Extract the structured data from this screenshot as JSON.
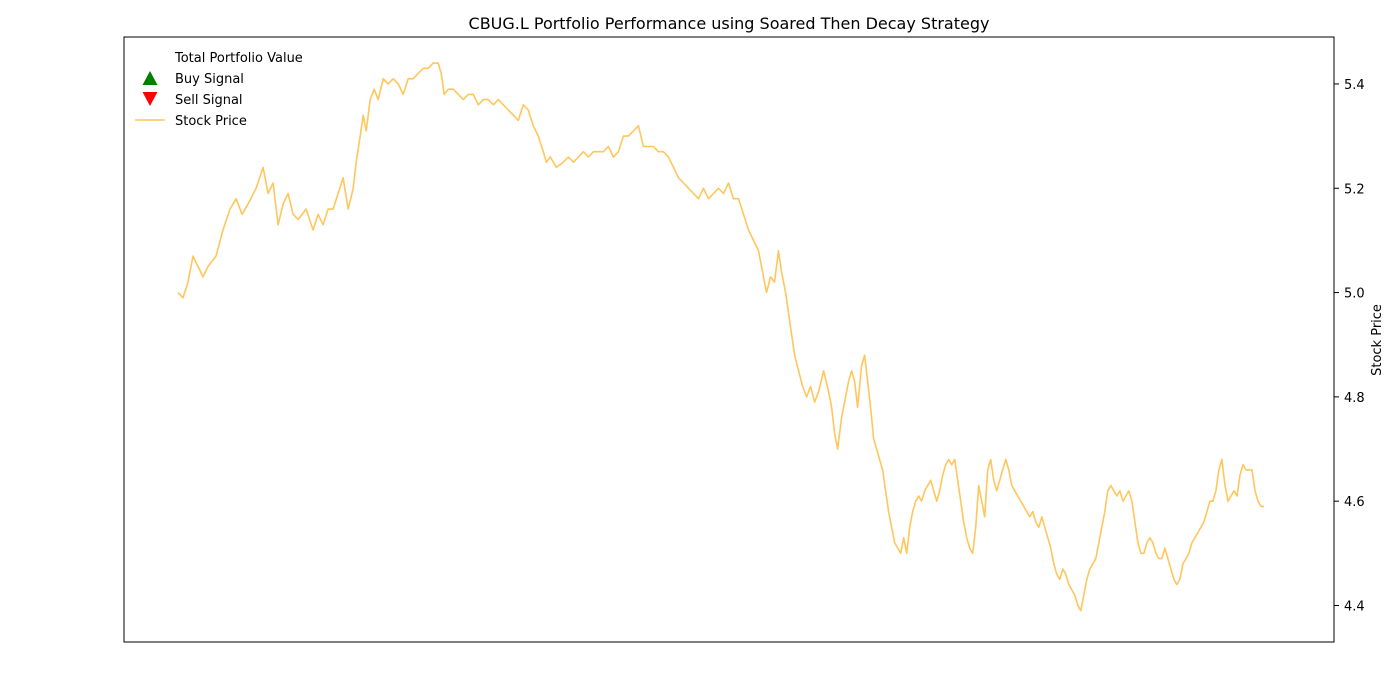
{
  "chart_data": {
    "type": "line",
    "title": "CBUG.L Portfolio Performance using Soared Then Decay Strategy",
    "xlabel": "",
    "ylabel": "Stock Price",
    "y_axis_side": "right",
    "ylim": [
      4.33,
      5.49
    ],
    "y_ticks": [
      "4.4",
      "4.6",
      "4.8",
      "5.0",
      "5.2",
      "5.4"
    ],
    "x_ticks_visible": false,
    "grid": false,
    "legend_position": "top-left",
    "legend": [
      {
        "label": "Total Portfolio Value",
        "marker": "none",
        "color": ""
      },
      {
        "label": "Buy Signal",
        "marker": "triangle-up",
        "color": "#008000"
      },
      {
        "label": "Sell Signal",
        "marker": "triangle-down",
        "color": "#ff0000"
      },
      {
        "label": "Stock Price",
        "marker": "line",
        "color": "#ffc65c"
      }
    ],
    "series": [
      {
        "name": "Stock Price",
        "color": "#ffc65c",
        "x_note": "trading-day index (no x tick labels shown)",
        "x_range": [
          0,
          1100
        ],
        "points": [
          [
            0,
            5.0
          ],
          [
            5,
            4.99
          ],
          [
            10,
            5.02
          ],
          [
            15,
            5.07
          ],
          [
            20,
            5.05
          ],
          [
            25,
            5.03
          ],
          [
            30,
            5.05
          ],
          [
            38,
            5.07
          ],
          [
            45,
            5.12
          ],
          [
            52,
            5.16
          ],
          [
            58,
            5.18
          ],
          [
            64,
            5.15
          ],
          [
            70,
            5.17
          ],
          [
            78,
            5.2
          ],
          [
            85,
            5.24
          ],
          [
            90,
            5.19
          ],
          [
            95,
            5.21
          ],
          [
            100,
            5.13
          ],
          [
            105,
            5.17
          ],
          [
            110,
            5.19
          ],
          [
            115,
            5.15
          ],
          [
            120,
            5.14
          ],
          [
            128,
            5.16
          ],
          [
            135,
            5.12
          ],
          [
            140,
            5.15
          ],
          [
            145,
            5.13
          ],
          [
            150,
            5.16
          ],
          [
            155,
            5.16
          ],
          [
            160,
            5.19
          ],
          [
            165,
            5.22
          ],
          [
            170,
            5.16
          ],
          [
            175,
            5.2
          ],
          [
            178,
            5.25
          ],
          [
            182,
            5.3
          ],
          [
            185,
            5.34
          ],
          [
            188,
            5.31
          ],
          [
            192,
            5.37
          ],
          [
            196,
            5.39
          ],
          [
            200,
            5.37
          ],
          [
            205,
            5.41
          ],
          [
            210,
            5.4
          ],
          [
            215,
            5.41
          ],
          [
            220,
            5.4
          ],
          [
            225,
            5.38
          ],
          [
            230,
            5.41
          ],
          [
            235,
            5.41
          ],
          [
            240,
            5.42
          ],
          [
            245,
            5.43
          ],
          [
            250,
            5.43
          ],
          [
            255,
            5.44
          ],
          [
            260,
            5.44
          ],
          [
            263,
            5.42
          ],
          [
            266,
            5.38
          ],
          [
            270,
            5.39
          ],
          [
            275,
            5.39
          ],
          [
            280,
            5.38
          ],
          [
            285,
            5.37
          ],
          [
            290,
            5.38
          ],
          [
            295,
            5.38
          ],
          [
            300,
            5.36
          ],
          [
            305,
            5.37
          ],
          [
            310,
            5.37
          ],
          [
            315,
            5.36
          ],
          [
            320,
            5.37
          ],
          [
            325,
            5.36
          ],
          [
            330,
            5.35
          ],
          [
            335,
            5.34
          ],
          [
            340,
            5.33
          ],
          [
            345,
            5.36
          ],
          [
            350,
            5.35
          ],
          [
            355,
            5.32
          ],
          [
            360,
            5.3
          ],
          [
            365,
            5.27
          ],
          [
            368,
            5.25
          ],
          [
            372,
            5.26
          ],
          [
            378,
            5.24
          ],
          [
            385,
            5.25
          ],
          [
            390,
            5.26
          ],
          [
            395,
            5.25
          ],
          [
            400,
            5.26
          ],
          [
            405,
            5.27
          ],
          [
            410,
            5.26
          ],
          [
            415,
            5.27
          ],
          [
            420,
            5.27
          ],
          [
            425,
            5.27
          ],
          [
            430,
            5.28
          ],
          [
            435,
            5.26
          ],
          [
            440,
            5.27
          ],
          [
            445,
            5.3
          ],
          [
            450,
            5.3
          ],
          [
            455,
            5.31
          ],
          [
            460,
            5.32
          ],
          [
            465,
            5.28
          ],
          [
            470,
            5.28
          ],
          [
            475,
            5.28
          ],
          [
            480,
            5.27
          ],
          [
            485,
            5.27
          ],
          [
            490,
            5.26
          ],
          [
            495,
            5.24
          ],
          [
            500,
            5.22
          ],
          [
            505,
            5.21
          ],
          [
            510,
            5.2
          ],
          [
            515,
            5.19
          ],
          [
            520,
            5.18
          ],
          [
            525,
            5.2
          ],
          [
            530,
            5.18
          ],
          [
            535,
            5.19
          ],
          [
            540,
            5.2
          ],
          [
            545,
            5.19
          ],
          [
            550,
            5.21
          ],
          [
            555,
            5.18
          ],
          [
            560,
            5.18
          ],
          [
            565,
            5.15
          ],
          [
            570,
            5.12
          ],
          [
            575,
            5.1
          ],
          [
            580,
            5.08
          ],
          [
            585,
            5.03
          ],
          [
            588,
            5.0
          ],
          [
            592,
            5.03
          ],
          [
            596,
            5.02
          ],
          [
            600,
            5.08
          ],
          [
            603,
            5.04
          ],
          [
            607,
            5.0
          ],
          [
            610,
            4.96
          ],
          [
            613,
            4.92
          ],
          [
            616,
            4.88
          ],
          [
            620,
            4.85
          ],
          [
            624,
            4.82
          ],
          [
            628,
            4.8
          ],
          [
            632,
            4.82
          ],
          [
            636,
            4.79
          ],
          [
            640,
            4.81
          ],
          [
            645,
            4.85
          ],
          [
            650,
            4.81
          ],
          [
            653,
            4.78
          ],
          [
            656,
            4.73
          ],
          [
            659,
            4.7
          ],
          [
            663,
            4.76
          ],
          [
            667,
            4.8
          ],
          [
            670,
            4.83
          ],
          [
            673,
            4.85
          ],
          [
            676,
            4.83
          ],
          [
            679,
            4.78
          ],
          [
            683,
            4.86
          ],
          [
            686,
            4.88
          ],
          [
            689,
            4.83
          ],
          [
            692,
            4.78
          ],
          [
            695,
            4.72
          ],
          [
            698,
            4.7
          ],
          [
            701,
            4.68
          ],
          [
            704,
            4.66
          ],
          [
            707,
            4.62
          ],
          [
            710,
            4.58
          ],
          [
            713,
            4.55
          ],
          [
            716,
            4.52
          ],
          [
            719,
            4.51
          ],
          [
            722,
            4.5
          ],
          [
            725,
            4.53
          ],
          [
            728,
            4.5
          ],
          [
            731,
            4.55
          ],
          [
            734,
            4.58
          ],
          [
            737,
            4.6
          ],
          [
            740,
            4.61
          ],
          [
            743,
            4.6
          ],
          [
            746,
            4.62
          ],
          [
            749,
            4.63
          ],
          [
            752,
            4.64
          ],
          [
            755,
            4.62
          ],
          [
            758,
            4.6
          ],
          [
            761,
            4.62
          ],
          [
            764,
            4.65
          ],
          [
            767,
            4.67
          ],
          [
            770,
            4.68
          ],
          [
            773,
            4.67
          ],
          [
            776,
            4.68
          ],
          [
            779,
            4.64
          ],
          [
            782,
            4.6
          ],
          [
            785,
            4.56
          ],
          [
            788,
            4.53
          ],
          [
            791,
            4.51
          ],
          [
            794,
            4.5
          ],
          [
            797,
            4.55
          ],
          [
            800,
            4.63
          ],
          [
            803,
            4.6
          ],
          [
            806,
            4.57
          ],
          [
            809,
            4.66
          ],
          [
            812,
            4.68
          ],
          [
            815,
            4.64
          ],
          [
            818,
            4.62
          ],
          [
            821,
            4.64
          ],
          [
            824,
            4.66
          ],
          [
            827,
            4.68
          ],
          [
            830,
            4.66
          ],
          [
            833,
            4.63
          ],
          [
            836,
            4.62
          ],
          [
            839,
            4.61
          ],
          [
            842,
            4.6
          ],
          [
            845,
            4.59
          ],
          [
            848,
            4.58
          ],
          [
            851,
            4.57
          ],
          [
            854,
            4.58
          ],
          [
            857,
            4.56
          ],
          [
            860,
            4.55
          ],
          [
            863,
            4.57
          ],
          [
            866,
            4.55
          ],
          [
            869,
            4.53
          ],
          [
            872,
            4.51
          ],
          [
            875,
            4.48
          ],
          [
            878,
            4.46
          ],
          [
            881,
            4.45
          ],
          [
            884,
            4.47
          ],
          [
            887,
            4.46
          ],
          [
            890,
            4.44
          ],
          [
            893,
            4.43
          ],
          [
            896,
            4.42
          ],
          [
            899,
            4.4
          ],
          [
            902,
            4.39
          ],
          [
            905,
            4.42
          ],
          [
            908,
            4.45
          ],
          [
            911,
            4.47
          ],
          [
            914,
            4.48
          ],
          [
            917,
            4.49
          ],
          [
            920,
            4.52
          ],
          [
            923,
            4.55
          ],
          [
            926,
            4.58
          ],
          [
            929,
            4.62
          ],
          [
            932,
            4.63
          ],
          [
            935,
            4.62
          ],
          [
            938,
            4.61
          ],
          [
            941,
            4.62
          ],
          [
            944,
            4.6
          ],
          [
            947,
            4.61
          ],
          [
            950,
            4.62
          ],
          [
            953,
            4.6
          ],
          [
            956,
            4.56
          ],
          [
            959,
            4.52
          ],
          [
            962,
            4.5
          ],
          [
            965,
            4.5
          ],
          [
            968,
            4.52
          ],
          [
            971,
            4.53
          ],
          [
            974,
            4.52
          ],
          [
            977,
            4.5
          ],
          [
            980,
            4.49
          ],
          [
            983,
            4.49
          ],
          [
            986,
            4.51
          ],
          [
            989,
            4.49
          ],
          [
            992,
            4.47
          ],
          [
            995,
            4.45
          ],
          [
            998,
            4.44
          ],
          [
            1001,
            4.45
          ],
          [
            1004,
            4.48
          ],
          [
            1007,
            4.49
          ],
          [
            1010,
            4.5
          ],
          [
            1013,
            4.52
          ],
          [
            1016,
            4.53
          ],
          [
            1019,
            4.54
          ],
          [
            1022,
            4.55
          ],
          [
            1025,
            4.56
          ],
          [
            1028,
            4.58
          ],
          [
            1031,
            4.6
          ],
          [
            1034,
            4.6
          ],
          [
            1037,
            4.62
          ],
          [
            1040,
            4.66
          ],
          [
            1043,
            4.68
          ],
          [
            1046,
            4.63
          ],
          [
            1049,
            4.6
          ],
          [
            1052,
            4.61
          ],
          [
            1055,
            4.62
          ],
          [
            1058,
            4.61
          ],
          [
            1061,
            4.65
          ],
          [
            1064,
            4.67
          ],
          [
            1067,
            4.66
          ],
          [
            1070,
            4.66
          ],
          [
            1073,
            4.66
          ],
          [
            1076,
            4.62
          ],
          [
            1079,
            4.6
          ],
          [
            1082,
            4.59
          ],
          [
            1085,
            4.59
          ]
        ]
      }
    ]
  }
}
